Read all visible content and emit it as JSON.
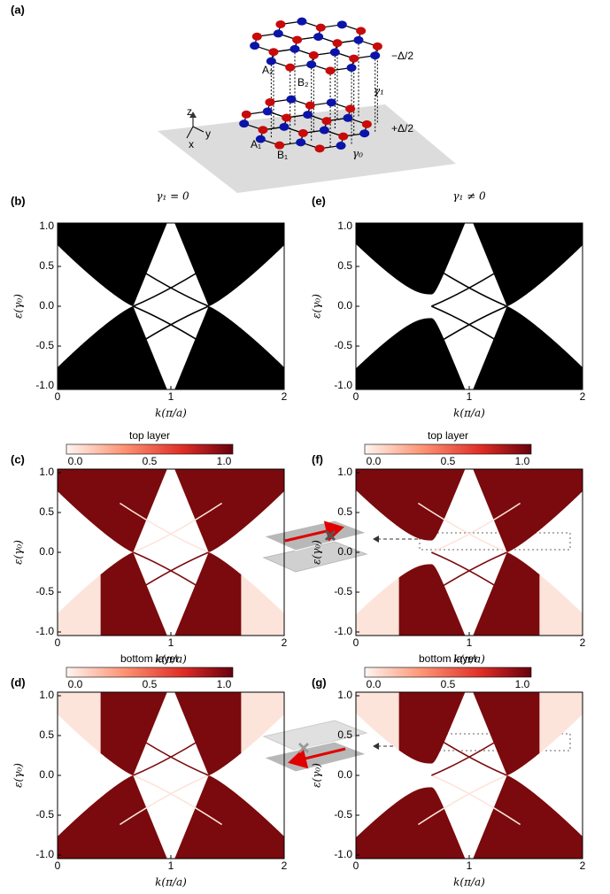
{
  "panel_a": {
    "label": "(a)",
    "sites": {
      "A1": "A₁",
      "B1": "B₁",
      "A2": "A₂",
      "B2": "B₂"
    },
    "hoppings": {
      "g0": "γ₀",
      "g1": "γ₁"
    },
    "potentials": {
      "top": "−Δ/2",
      "bottom": "+Δ/2"
    },
    "axes": {
      "z": "z",
      "y": "y",
      "x": "x"
    }
  },
  "column_titles": [
    "γ₁ = 0",
    "γ₁ ≠ 0"
  ],
  "panels": [
    {
      "label": "(b)"
    },
    {
      "label": "(c)",
      "layer": "top layer"
    },
    {
      "label": "(d)",
      "layer": "bottom layer"
    },
    {
      "label": "(e)"
    },
    {
      "label": "(f)",
      "layer": "top layer"
    },
    {
      "label": "(g)",
      "layer": "bottom layer"
    }
  ],
  "axes": {
    "ylabel": "ε(γ₀)",
    "xlabel": "k(π/a)",
    "yticks": [
      "1.0",
      "0.5",
      "0.0",
      "-0.5",
      "-1.0"
    ],
    "xticks": [
      "0",
      "1",
      "2"
    ],
    "colorbar_ticks": [
      "0.0",
      "0.5",
      "1.0"
    ]
  }
}
